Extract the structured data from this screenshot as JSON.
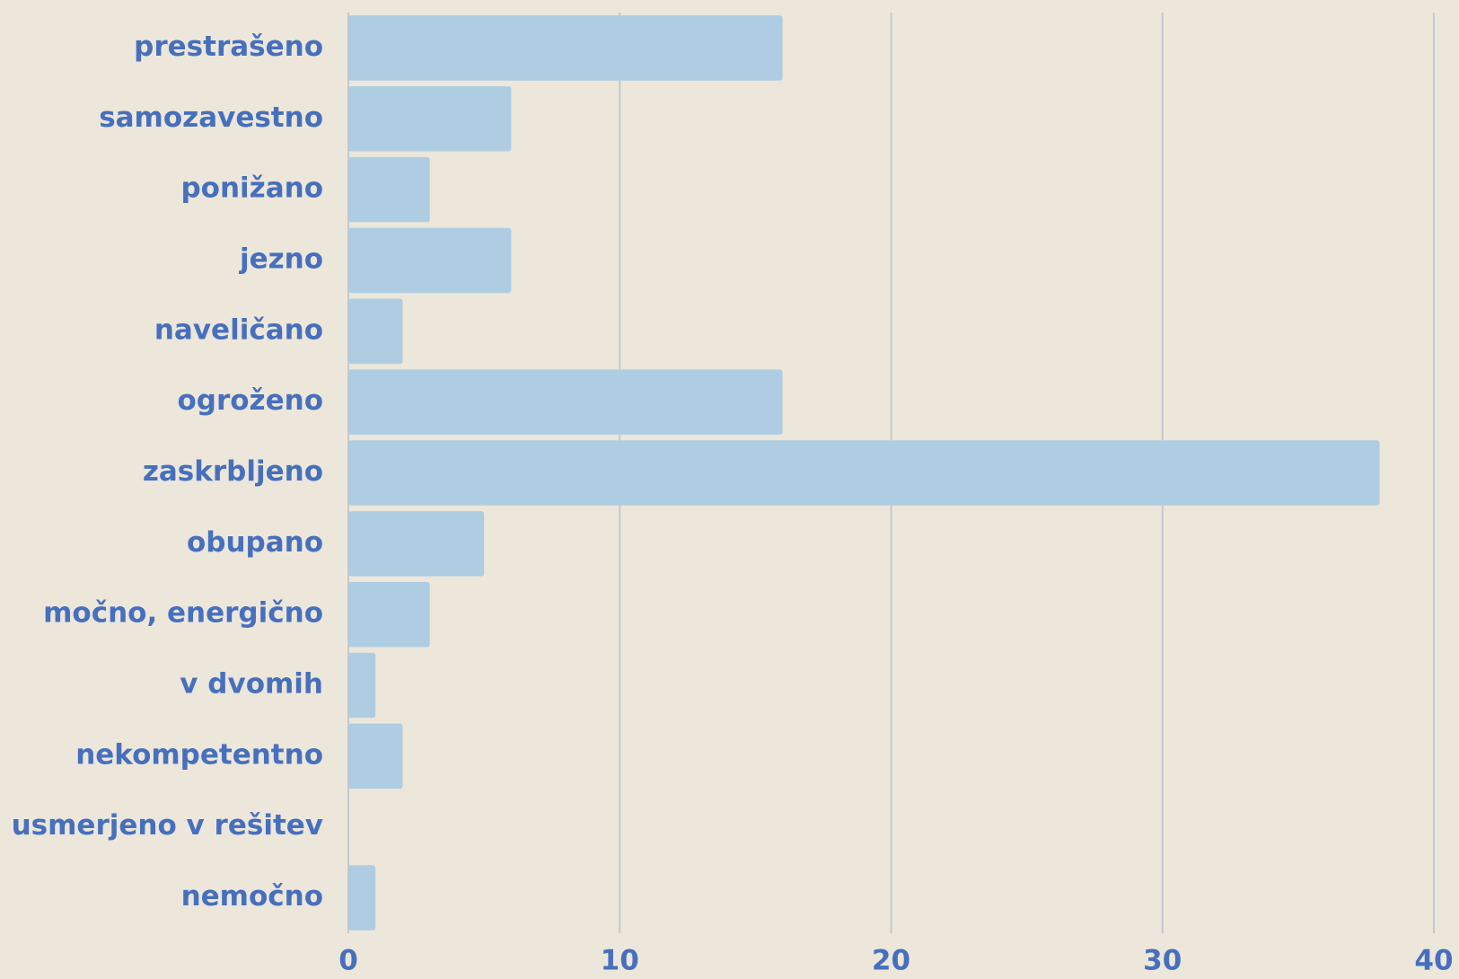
{
  "chart_data": {
    "type": "barh",
    "categories": [
      "prestrašeno",
      "samozavestno",
      "ponižano",
      "jezno",
      "naveličano",
      "ogroženo",
      "zaskrbljeno",
      "obupano",
      "močno, energično",
      "v dvomih",
      "nekompetentno",
      "usmerjeno v rešitev",
      "nemočno"
    ],
    "values": [
      16,
      6,
      3,
      6,
      2,
      16,
      38,
      5,
      3,
      1,
      2,
      0,
      1
    ],
    "color": "#afcde2",
    "xlim": [
      0,
      40
    ],
    "xticks": [
      0,
      10,
      20,
      30,
      40
    ],
    "grid": true
  }
}
